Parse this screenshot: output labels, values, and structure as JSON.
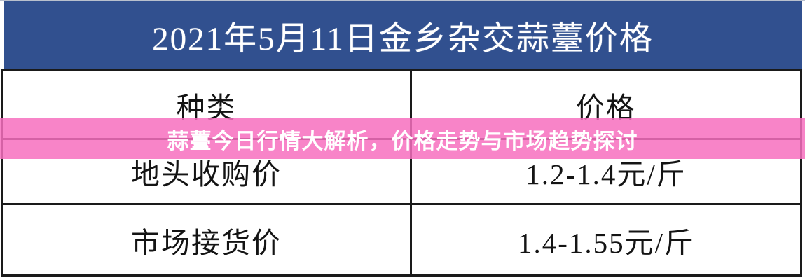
{
  "title": {
    "text": "2021年5月11日金乡杂交蒜薹价格"
  },
  "table": {
    "columns": [
      "种类",
      "价格"
    ],
    "rows": [
      {
        "type": "地头收购价",
        "price": "1.2-1.4元/斤"
      },
      {
        "type": "市场接货价",
        "price": "1.4-1.55元/斤"
      }
    ]
  },
  "banner": {
    "text": "蒜薹今日行情大解析，价格走势与市场趋势探讨"
  },
  "colors": {
    "header_blue": "#31508F",
    "banner_pink": "#F76FBE",
    "banner_pink_rgba": "rgba(247,111,190,0.85)",
    "border_black": "#1A1A1A",
    "cell_text": "#141414",
    "title_text": "#FFFFFF",
    "banner_text": "#FFFFFF"
  }
}
